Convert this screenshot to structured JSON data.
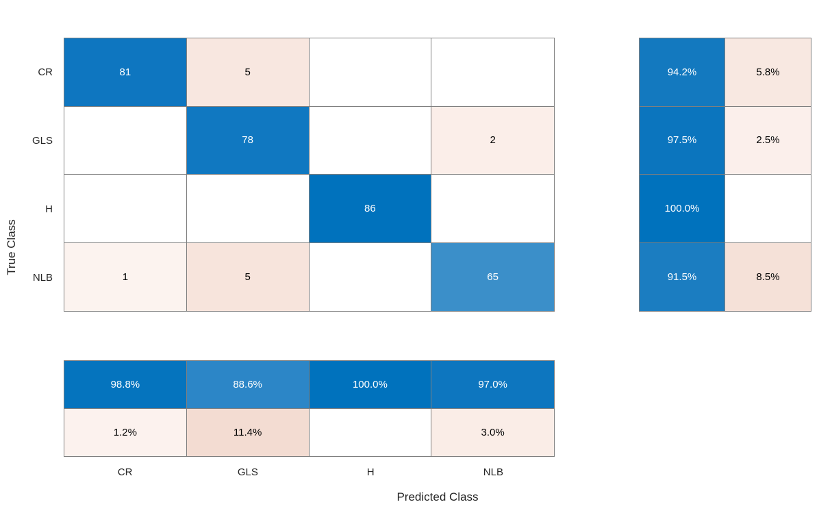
{
  "chart_data": {
    "type": "heatmap",
    "subtype": "confusion-matrix",
    "title": "",
    "xlabel": "Predicted Class",
    "ylabel": "True Class",
    "classes": [
      "CR",
      "GLS",
      "H",
      "NLB"
    ],
    "matrix_values": [
      [
        81,
        5,
        null,
        null
      ],
      [
        null,
        78,
        null,
        2
      ],
      [
        null,
        null,
        86,
        null
      ],
      [
        1,
        5,
        null,
        65
      ]
    ],
    "row_summary_values": [
      [
        "94.2%",
        "5.8%"
      ],
      [
        "97.5%",
        "2.5%"
      ],
      [
        "100.0%",
        ""
      ],
      [
        "91.5%",
        "8.5%"
      ]
    ],
    "col_summary_values": [
      [
        "98.8%",
        "88.6%",
        "100.0%",
        "97.0%"
      ],
      [
        "1.2%",
        "11.4%",
        "",
        "3.0%"
      ]
    ],
    "legend_position": "none",
    "grid": "on"
  },
  "colors": {
    "diagonal_full": "#0072bd",
    "grid_line": "#7f7f7f",
    "tick_label": "#262626",
    "cell_text_dark": "#000000",
    "cell_text_light": "#ffffff",
    "matrix_cell_colors": [
      [
        "#0e76c0",
        "#f8e7e0",
        "#ffffff",
        "#ffffff"
      ],
      [
        "#ffffff",
        "#1078c1",
        "#ffffff",
        "#fbeee9"
      ],
      [
        "#ffffff",
        "#ffffff",
        "#0072bd",
        "#ffffff"
      ],
      [
        "#fcf3ef",
        "#f7e4dc",
        "#ffffff",
        "#3b8fc9"
      ]
    ],
    "row_summary_colors": [
      [
        "#1379bf",
        "#f8e8e1"
      ],
      [
        "#0b75be",
        "#fbefeb"
      ],
      [
        "#0072bd",
        "#ffffff"
      ],
      [
        "#1b7dc1",
        "#f5e1d8"
      ]
    ],
    "col_summary_colors": [
      [
        "#0574be",
        "#2c86c7",
        "#0072bd",
        "#0d76bf"
      ],
      [
        "#fcf2ee",
        "#f3dcd2",
        "#ffffff",
        "#faede7"
      ]
    ]
  }
}
